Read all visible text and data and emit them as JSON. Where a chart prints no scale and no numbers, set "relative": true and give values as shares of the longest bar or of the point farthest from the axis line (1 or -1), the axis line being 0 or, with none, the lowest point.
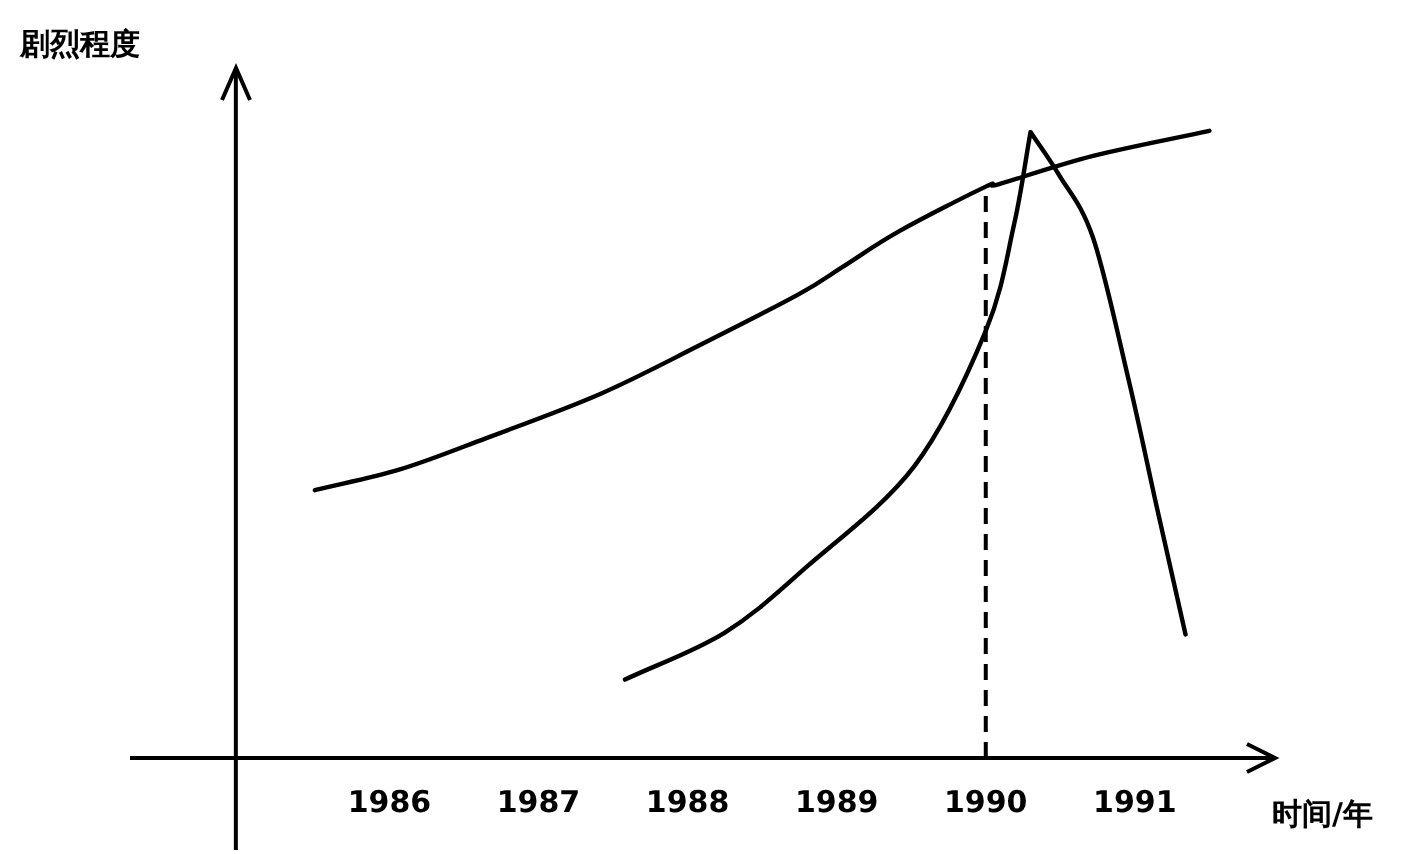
{
  "chart_data": {
    "type": "line",
    "relative": true,
    "xlabel": "时间/年",
    "ylabel": "剧烈程度",
    "xlim": [
      1984.26,
      1991.94
    ],
    "xticks": [
      1986,
      1987,
      1988,
      1989,
      1990,
      1991
    ],
    "tick_labels": "x",
    "grid": false,
    "marker": "none",
    "line_style": "solid",
    "series": [
      {
        "color": "#000000",
        "x": [
          1985.5,
          1986.07,
          1986.65,
          1987.41,
          1988.08,
          1988.75,
          1989.04,
          1989.42,
          1990.0,
          1990.09,
          1990.72,
          1991.5
        ],
        "values": [
          0.427,
          0.46,
          0.51,
          0.58,
          0.658,
          0.74,
          0.783,
          0.84,
          0.911,
          0.915,
          0.96,
          1
        ]
      },
      {
        "color": "#000000",
        "x": [
          1987.58,
          1988.25,
          1988.8,
          1989.52,
          1990.0,
          1990.19,
          1990.3,
          1990.49,
          1990.72,
          1990.96,
          1991.15,
          1991.34
        ],
        "values": [
          0.125,
          0.2,
          0.305,
          0.465,
          0.681,
          0.851,
          0.998,
          0.93,
          0.829,
          0.601,
          0.397,
          0.197
        ]
      }
    ],
    "ref_lines": [
      {
        "axis": "x",
        "value": 1984.97,
        "color": "#000000",
        "line_style": "solid"
      },
      {
        "axis": "x",
        "value": 1990,
        "color": "#000000",
        "line_style": "dashed"
      }
    ]
  }
}
